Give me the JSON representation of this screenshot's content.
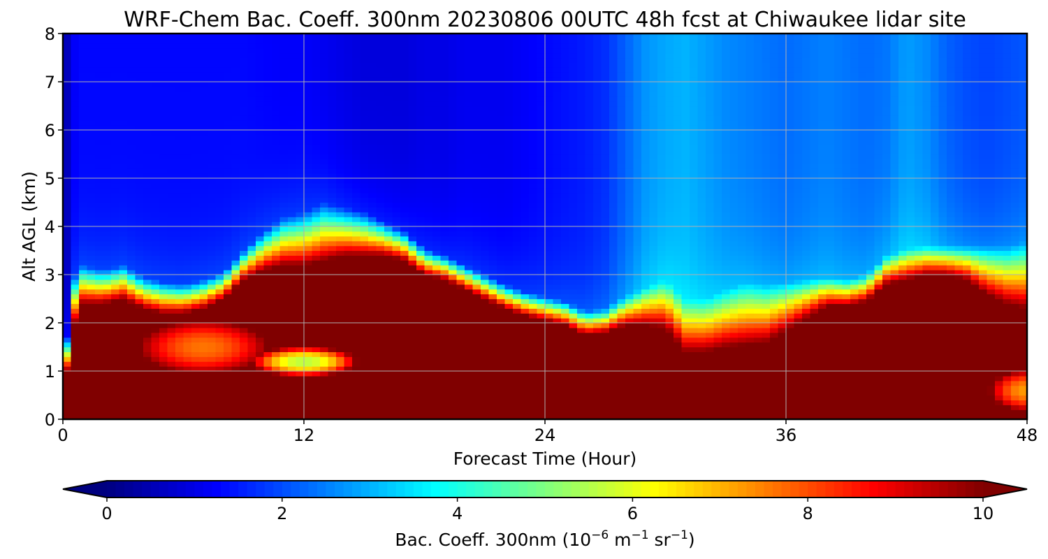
{
  "chart_data": {
    "type": "heatmap",
    "title": "WRF-Chem Bac. Coeff. 300nm  20230806 00UTC 48h fcst at Chiwaukee lidar site",
    "xlabel": "Forecast Time (Hour)",
    "ylabel": "Alt AGL (km)",
    "xlim": [
      0,
      48
    ],
    "ylim": [
      0,
      8
    ],
    "x_ticks": [
      "0",
      "12",
      "24",
      "36",
      "48"
    ],
    "y_ticks": [
      "0",
      "1",
      "2",
      "3",
      "4",
      "5",
      "6",
      "7",
      "8"
    ],
    "grid": true,
    "colormap": "jet",
    "colorbar": {
      "orientation": "horizontal",
      "range": [
        0,
        10
      ],
      "extend": "both",
      "ticks": [
        "0",
        "2",
        "4",
        "6",
        "8",
        "10"
      ],
      "label_main": "Bac. Coeff. 300nm  (10",
      "label_exp1": "−6",
      "label_mid": " m",
      "label_exp2": "−1",
      "label_mid2": " sr",
      "label_exp3": "−1",
      "label_end": ")"
    },
    "x_hours": [
      0,
      0.3,
      0.6,
      1,
      2,
      3,
      4,
      5,
      6,
      7,
      8,
      9,
      10,
      11,
      12,
      13,
      14,
      15,
      16,
      17,
      18,
      19,
      20,
      21,
      22,
      23,
      24,
      25,
      26,
      27,
      28,
      29,
      30,
      31,
      32,
      33,
      34,
      35,
      36,
      37,
      38,
      39,
      40,
      41,
      42,
      43,
      44,
      45,
      46,
      47,
      48
    ],
    "high_layer_top_km": [
      0,
      1.5,
      2.0,
      2.4,
      2.4,
      2.5,
      2.3,
      2.2,
      2.2,
      2.3,
      2.5,
      2.9,
      3.1,
      3.2,
      3.2,
      3.3,
      3.4,
      3.4,
      3.4,
      3.3,
      3.0,
      2.9,
      2.7,
      2.5,
      2.3,
      2.15,
      2.05,
      1.95,
      1.75,
      1.8,
      1.95,
      1.95,
      1.9,
      1.4,
      1.4,
      1.5,
      1.55,
      1.6,
      1.85,
      2.1,
      2.35,
      2.35,
      2.45,
      2.8,
      2.9,
      3.0,
      3.0,
      2.9,
      2.6,
      2.4,
      2.3
    ],
    "layer_transition_km": [
      0.6,
      0.8,
      1.0,
      0.8,
      0.7,
      0.7,
      0.65,
      0.65,
      0.6,
      0.6,
      0.55,
      0.6,
      0.8,
      1.0,
      1.1,
      1.2,
      1.0,
      0.9,
      0.7,
      0.6,
      0.55,
      0.5,
      0.5,
      0.5,
      0.5,
      0.5,
      0.5,
      0.5,
      0.5,
      0.5,
      0.6,
      0.8,
      1.0,
      1.1,
      1.1,
      1.2,
      1.3,
      1.2,
      1.0,
      0.8,
      0.6,
      0.55,
      0.55,
      0.6,
      0.65,
      0.6,
      0.6,
      0.7,
      1.0,
      1.2,
      1.4
    ],
    "aloft_value": [
      0.2,
      0.8,
      1.2,
      1.3,
      1.3,
      1.3,
      1.3,
      1.3,
      1.3,
      1.3,
      1.3,
      1.3,
      1.25,
      1.2,
      1.2,
      1.1,
      1.0,
      0.9,
      0.9,
      0.9,
      1.0,
      1.0,
      1.1,
      1.1,
      1.1,
      1.2,
      1.3,
      1.4,
      1.5,
      1.7,
      2.2,
      2.7,
      2.9,
      3.0,
      2.8,
      2.6,
      2.5,
      2.4,
      2.3,
      2.4,
      2.5,
      2.4,
      2.3,
      2.4,
      2.8,
      2.6,
      2.2,
      2.0,
      1.9,
      2.0,
      2.1
    ],
    "inset_features": [
      {
        "name": "low-value pocket",
        "x_center": 12,
        "y_center_km": 1.2,
        "x_halfwidth": 2.8,
        "y_halfwidth_km": 0.32,
        "value": 5.5
      },
      {
        "name": "mid-layer gap",
        "x_center": 7,
        "y_center_km": 1.5,
        "x_halfwidth": 3.5,
        "y_halfwidth_km": 0.6,
        "value": 7.6
      },
      {
        "name": "surface pocket",
        "x_center": 48,
        "y_center_km": 0.6,
        "x_halfwidth": 2.0,
        "y_halfwidth_km": 0.45,
        "value": 7.2
      }
    ]
  }
}
